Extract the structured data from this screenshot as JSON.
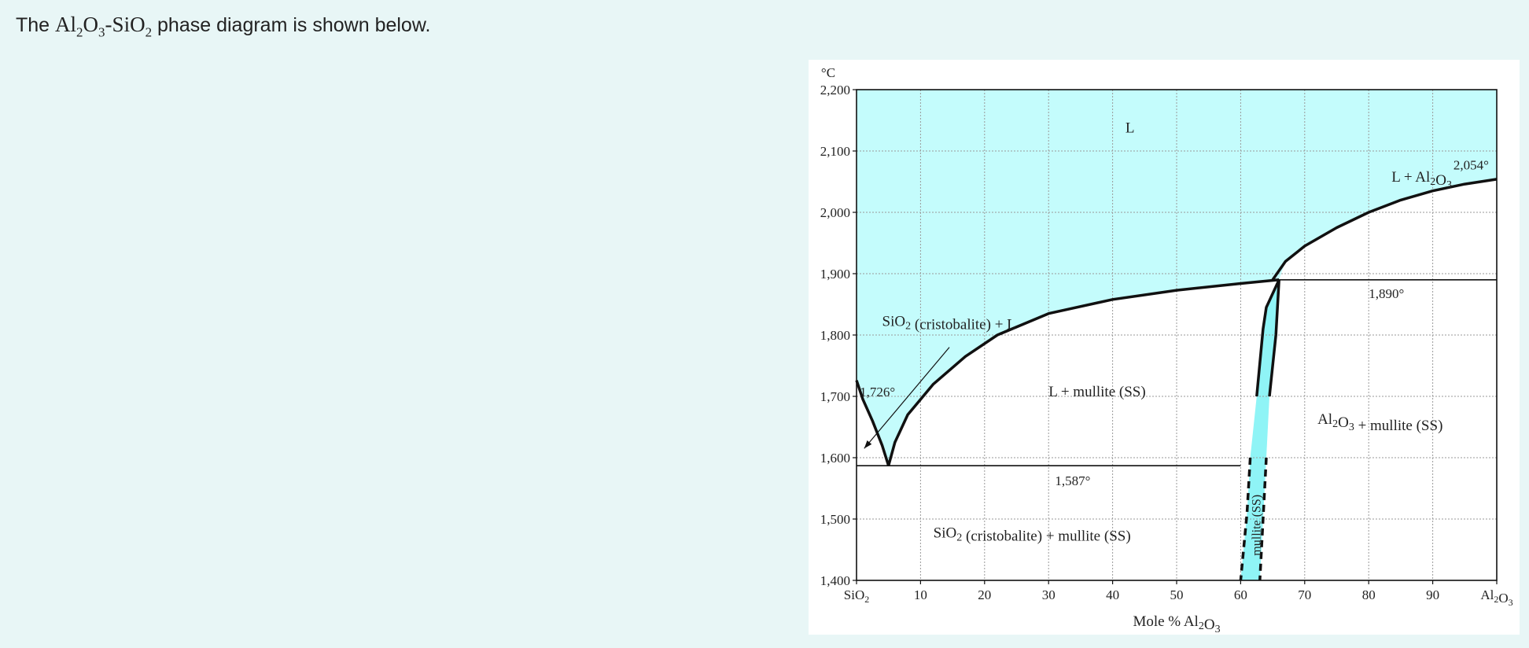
{
  "intro": {
    "prefix": "The",
    "formula_al": "Al",
    "formula_al_sub": "2",
    "formula_o": "O",
    "formula_o_sub": "3",
    "formula_sep": "-",
    "formula_si": "SiO",
    "formula_si_sub": "2",
    "suffix": "phase diagram is shown below."
  },
  "chart_data": {
    "type": "line",
    "xlabel": "Mole % Al₂O₃",
    "ylabel": "°C",
    "xlim": [
      0,
      100
    ],
    "ylim": [
      1400,
      2200
    ],
    "grid": true,
    "x_ticks": [
      {
        "value": 0,
        "label": "SiO₂"
      },
      {
        "value": 10,
        "label": "10"
      },
      {
        "value": 20,
        "label": "20"
      },
      {
        "value": 30,
        "label": "30"
      },
      {
        "value": 40,
        "label": "40"
      },
      {
        "value": 50,
        "label": "50"
      },
      {
        "value": 60,
        "label": "60"
      },
      {
        "value": 70,
        "label": "70"
      },
      {
        "value": 80,
        "label": "80"
      },
      {
        "value": 90,
        "label": "90"
      },
      {
        "value": 100,
        "label": "Al₂O₃"
      }
    ],
    "y_ticks": [
      {
        "value": 1400,
        "label": "1,400"
      },
      {
        "value": 1500,
        "label": "1,500"
      },
      {
        "value": 1600,
        "label": "1,600"
      },
      {
        "value": 1700,
        "label": "1,700"
      },
      {
        "value": 1800,
        "label": "1,800"
      },
      {
        "value": 1900,
        "label": "1,900"
      },
      {
        "value": 2000,
        "label": "2,000"
      },
      {
        "value": 2100,
        "label": "2,100"
      },
      {
        "value": 2200,
        "label": "2,200"
      }
    ],
    "lines": {
      "cristobalite_liquidus": [
        [
          0,
          1726
        ],
        [
          1,
          1695
        ],
        [
          2.5,
          1660
        ],
        [
          4,
          1620
        ],
        [
          5,
          1587
        ]
      ],
      "mullite_liquidus": [
        [
          5,
          1587
        ],
        [
          6,
          1625
        ],
        [
          8,
          1670
        ],
        [
          12,
          1720
        ],
        [
          17,
          1765
        ],
        [
          22,
          1800
        ],
        [
          30,
          1835
        ],
        [
          40,
          1858
        ],
        [
          50,
          1873
        ],
        [
          60,
          1884
        ],
        [
          66,
          1890
        ]
      ],
      "alumina_liquidus": [
        [
          65,
          1890
        ],
        [
          67,
          1920
        ],
        [
          70,
          1945
        ],
        [
          75,
          1975
        ],
        [
          80,
          2000
        ],
        [
          85,
          2020
        ],
        [
          90,
          2035
        ],
        [
          95,
          2046
        ],
        [
          100,
          2054
        ]
      ],
      "mullite_left_boundary": [
        [
          66,
          1890
        ],
        [
          64,
          1845
        ],
        [
          63.5,
          1810
        ],
        [
          62.5,
          1700
        ],
        [
          61.5,
          1600
        ],
        [
          61,
          1510
        ],
        [
          60,
          1400
        ]
      ],
      "mullite_right_boundary": [
        [
          66,
          1890
        ],
        [
          65.5,
          1800
        ],
        [
          64.5,
          1700
        ],
        [
          64,
          1600
        ],
        [
          63.5,
          1500
        ],
        [
          63,
          1400
        ]
      ],
      "mullite_low_T_start": 1620
    },
    "isotherms": [
      {
        "temperature": 1587,
        "x_from": 0,
        "x_to": 60
      },
      {
        "temperature": 1890,
        "x_from": 65,
        "x_to": 100
      }
    ],
    "regions": [
      {
        "label": "L",
        "x": 42,
        "y": 2130
      },
      {
        "label": "L + Al₂O₃",
        "x": 93,
        "y": 2050
      },
      {
        "label": "SiO₂ (cristobalite) + L",
        "x": 4,
        "y": 1815
      },
      {
        "label": "L + mullite (SS)",
        "x": 30,
        "y": 1700
      },
      {
        "label": "Al₂O₃ + mullite (SS)",
        "x": 72,
        "y": 1655
      },
      {
        "label": "SiO₂ (cristobalite) + mullite (SS)",
        "x": 12,
        "y": 1470
      },
      {
        "label": "mullite (SS)",
        "x": 62.5,
        "y": 1490,
        "rotated": true
      }
    ],
    "annotations": [
      {
        "label": "2,054°",
        "x": 96,
        "y": 2070
      },
      {
        "label": "1,890°",
        "x": 80,
        "y": 1860
      },
      {
        "label": "1,726°",
        "x": 0.5,
        "y": 1700
      },
      {
        "label": "1,587°",
        "x": 31,
        "y": 1555
      }
    ],
    "arrow": {
      "from": [
        14.5,
        1780
      ],
      "to": [
        1.2,
        1615
      ]
    },
    "colors": {
      "liquid_fill": "#c4fcfc",
      "mullite_fill": "#8ff4f6",
      "curve": "#111111",
      "grid": "#9a9a9a"
    }
  }
}
